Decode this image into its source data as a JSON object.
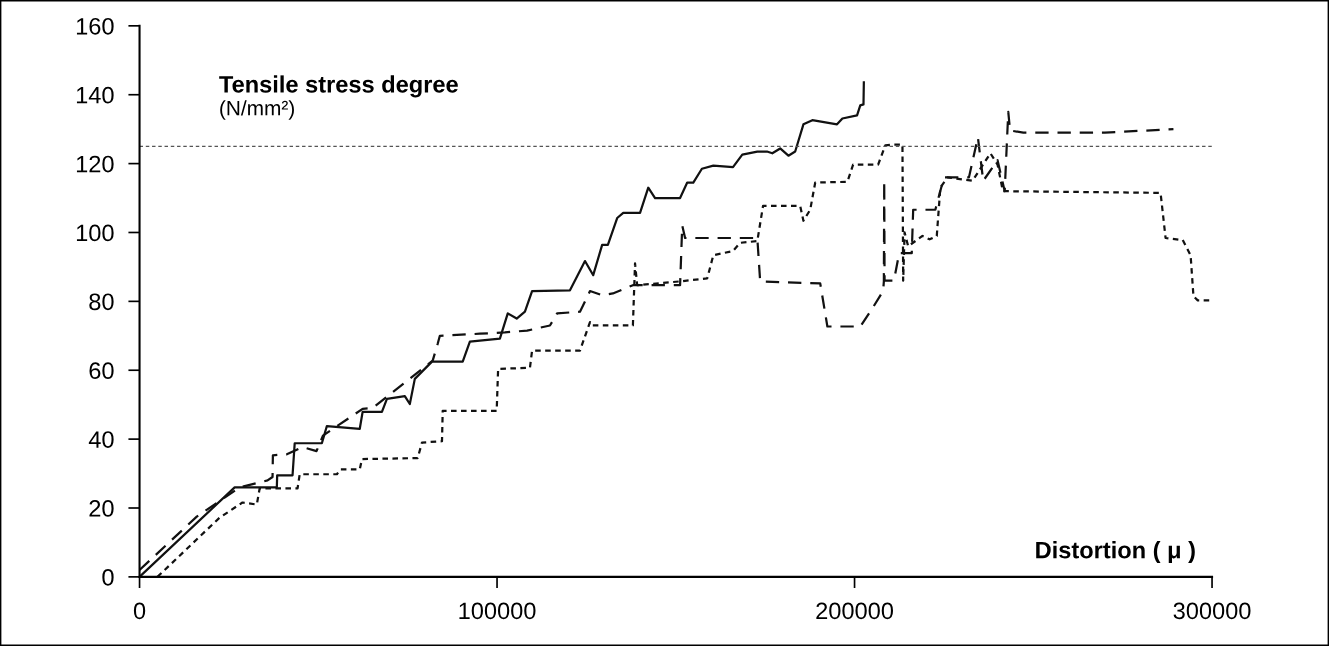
{
  "chart_data": {
    "type": "line",
    "ylabel": "Tensile stress degree\n(N/mm²)",
    "xlabel": "Distortion ( μ )",
    "xlim": [
      0,
      300000
    ],
    "ylim": [
      0,
      160
    ],
    "xticks": [
      0,
      100000,
      200000,
      300000
    ],
    "yticks": [
      0,
      20,
      40,
      60,
      80,
      100,
      120,
      140,
      160
    ],
    "grid": false,
    "ref_lines": [
      {
        "axis": "y",
        "value": 125,
        "color": "#555555",
        "line_style": "dotted"
      }
    ],
    "series": [
      {
        "color": "#111111",
        "line_style": "solid",
        "x": [
          0,
          26600,
          33000,
          38400,
          38500,
          42800,
          43400,
          51000,
          52400,
          61600,
          62400,
          67800,
          69200,
          74200,
          75600,
          77000,
          81800,
          90400,
          92400,
          100800,
          103000,
          105500,
          107800,
          109800,
          120400,
          124600,
          126900,
          129400,
          131000,
          133600,
          135300,
          140000,
          142300,
          144200,
          151200,
          153200,
          154900,
          157300,
          160500,
          166000,
          168600,
          172800,
          175500,
          177000,
          179200,
          181500,
          183400,
          185700,
          188200,
          195100,
          196600,
          200700,
          201600,
          202500,
          202600
        ],
        "values": [
          0,
          26,
          26,
          26,
          29.5,
          29.5,
          38.8,
          38.8,
          43.8,
          43,
          47.9,
          47.9,
          51.7,
          52.5,
          50.2,
          57.5,
          62.5,
          62.5,
          68.3,
          69.2,
          76.5,
          75,
          77,
          83,
          83.2,
          91.7,
          87.6,
          96.4,
          96.4,
          104.2,
          105.7,
          105.7,
          113,
          110,
          110,
          114.5,
          114.5,
          118.5,
          119.4,
          119,
          122.6,
          123.5,
          123.5,
          123,
          124.4,
          122.3,
          123.5,
          131.4,
          132.6,
          131.4,
          133.1,
          134,
          136.9,
          137.2,
          143.6
        ]
      },
      {
        "color": "#111111",
        "line_style": "dashed",
        "x": [
          0,
          16000,
          28000,
          35800,
          37200,
          37300,
          41200,
          45600,
          49500,
          51300,
          62400,
          65200,
          82000,
          83400,
          84000,
          95200,
          102200,
          108400,
          114800,
          116800,
          123200,
          126000,
          129400,
          132400,
          138000,
          151200,
          151800,
          152600,
          172800,
          173600,
          190400,
          192400,
          201600,
          204400,
          208000,
          208200,
          208300,
          208400,
          211000,
          212500,
          216000,
          216400,
          222600,
          225000,
          232000,
          234500,
          236000,
          240000,
          242000,
          243000,
          243500,
          247200,
          270000,
          289200
        ],
        "values": [
          2,
          17.5,
          26,
          28,
          29,
          35.3,
          35.6,
          37.7,
          36.5,
          41,
          48.8,
          49,
          62.8,
          67.7,
          70,
          70.6,
          71,
          71.5,
          73,
          76.5,
          77,
          83,
          81.8,
          82.3,
          84.7,
          84.7,
          102,
          98.4,
          98.4,
          85.8,
          85.2,
          72.7,
          72.7,
          77,
          83,
          85.8,
          115,
          86,
          86,
          94,
          94,
          106.6,
          106.6,
          116,
          116,
          127.6,
          115,
          121,
          112,
          135,
          129.6,
          129,
          129,
          130
        ]
      },
      {
        "color": "#111111",
        "line_style": "dotted",
        "x": [
          5000,
          22400,
          28800,
          32800,
          33600,
          44200,
          44800,
          55200,
          56200,
          61600,
          62200,
          77800,
          79000,
          84600,
          84800,
          99900,
          100300,
          109200,
          109800,
          123200,
          126000,
          126500,
          138000,
          138600,
          139200,
          151200,
          158800,
          160500,
          166000,
          168000,
          172800,
          174400,
          184800,
          185700,
          187600,
          189000,
          198000,
          199600,
          206600,
          208600,
          210800,
          213400,
          213600,
          214000,
          215000,
          219000,
          221000,
          223000,
          224000,
          226000,
          233000,
          238000,
          240000,
          241500,
          285600,
          287000,
          291800,
          294000,
          294800,
          296000,
          300000
        ],
        "values": [
          0,
          17.2,
          21.6,
          21,
          25.7,
          25.7,
          29.8,
          29.8,
          31.2,
          31.2,
          34.2,
          34.5,
          39,
          39.4,
          48.2,
          48.2,
          60.4,
          60.7,
          65.7,
          65.7,
          74,
          73,
          73,
          91,
          84.7,
          85.8,
          86.7,
          93.4,
          94.6,
          97,
          97.5,
          107.7,
          107.7,
          103.4,
          106.6,
          114.5,
          114.7,
          119.7,
          119.7,
          125.3,
          125.5,
          125.5,
          86,
          100,
          96,
          99,
          98,
          99,
          113,
          116,
          115,
          123,
          119.7,
          112,
          111.5,
          98.4,
          97.8,
          93.4,
          81.5,
          80.3,
          80.3
        ]
      }
    ]
  }
}
